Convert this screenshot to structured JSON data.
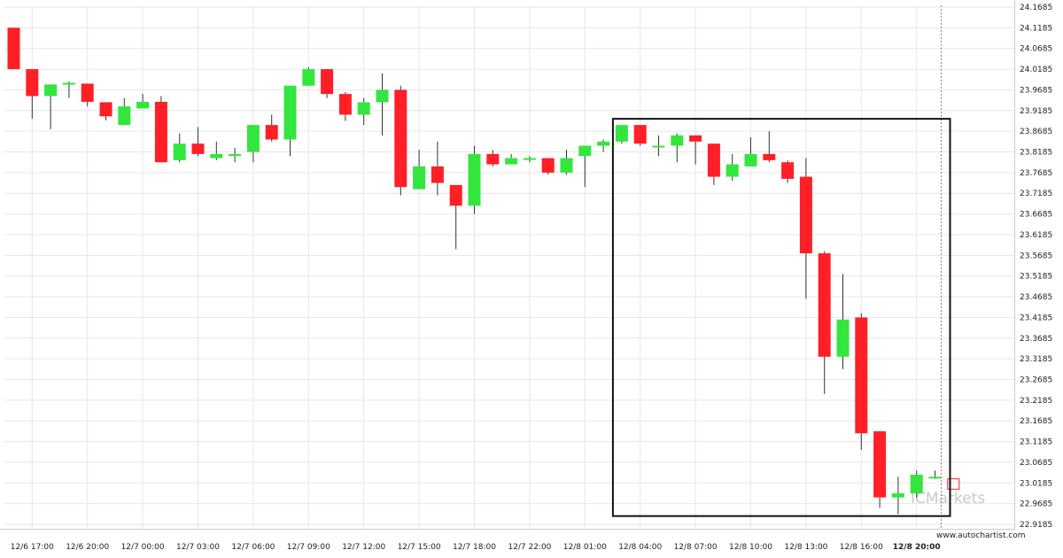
{
  "watermark": "ICMarkets",
  "source_url": "www.autochartist.com",
  "colors": {
    "bull": "#33e63d",
    "bear": "#ff1f26",
    "wick": "#333333",
    "grid": "#e6e6e6"
  },
  "chart_data": {
    "type": "candlestick",
    "x_tick_labels": [
      "12/6 17:00",
      "12/6 20:00",
      "12/7 00:00",
      "12/7 03:00",
      "12/7 06:00",
      "12/7 09:00",
      "12/7 12:00",
      "12/7 15:00",
      "12/7 18:00",
      "12/7 22:00",
      "12/8 01:00",
      "12/8 04:00",
      "12/8 07:00",
      "12/8 10:00",
      "12/8 13:00",
      "12/8 16:00",
      "12/8 20:00"
    ],
    "x_tick_candle_index": [
      1,
      4,
      7,
      10,
      13,
      16,
      19,
      22,
      25,
      28,
      31,
      34,
      37,
      40,
      43,
      46,
      49
    ],
    "y_tick_labels": [
      "24.1685",
      "24.1185",
      "24.0685",
      "24.0185",
      "23.9685",
      "23.9185",
      "23.8685",
      "23.8185",
      "23.7685",
      "23.7185",
      "23.6685",
      "23.6185",
      "23.5685",
      "23.5185",
      "23.4685",
      "23.4185",
      "23.3685",
      "23.3185",
      "23.2685",
      "23.2185",
      "23.1685",
      "23.1185",
      "23.0685",
      "23.0185",
      "22.9685",
      "22.9185"
    ],
    "ylim": [
      22.9185,
      24.1685
    ],
    "candles": [
      {
        "o": 24.1185,
        "h": 24.1185,
        "l": 24.0185,
        "c": 24.0185
      },
      {
        "o": 24.0185,
        "h": 24.0185,
        "l": 23.8985,
        "c": 23.9535
      },
      {
        "o": 23.9535,
        "h": 23.9815,
        "l": 23.8735,
        "c": 23.9815
      },
      {
        "o": 23.9815,
        "h": 23.9885,
        "l": 23.9485,
        "c": 23.9855
      },
      {
        "o": 23.9835,
        "h": 23.9835,
        "l": 23.9285,
        "c": 23.9395
      },
      {
        "o": 23.9385,
        "h": 23.9385,
        "l": 23.8945,
        "c": 23.9045
      },
      {
        "o": 23.8835,
        "h": 23.9485,
        "l": 23.8835,
        "c": 23.9285
      },
      {
        "o": 23.9235,
        "h": 23.9585,
        "l": 23.9235,
        "c": 23.9395
      },
      {
        "o": 23.9395,
        "h": 23.9535,
        "l": 23.7935,
        "c": 23.7935
      },
      {
        "o": 23.7985,
        "h": 23.8635,
        "l": 23.7935,
        "c": 23.8385
      },
      {
        "o": 23.8385,
        "h": 23.8785,
        "l": 23.8085,
        "c": 23.8135
      },
      {
        "o": 23.8035,
        "h": 23.8435,
        "l": 23.7985,
        "c": 23.8135
      },
      {
        "o": 23.8085,
        "h": 23.8285,
        "l": 23.7935,
        "c": 23.8135
      },
      {
        "o": 23.8185,
        "h": 23.8835,
        "l": 23.7935,
        "c": 23.8835
      },
      {
        "o": 23.8835,
        "h": 23.9085,
        "l": 23.8435,
        "c": 23.8485
      },
      {
        "o": 23.8485,
        "h": 23.9785,
        "l": 23.8085,
        "c": 23.9785
      },
      {
        "o": 23.9785,
        "h": 24.0235,
        "l": 23.9785,
        "c": 24.0185
      },
      {
        "o": 24.0185,
        "h": 24.0185,
        "l": 23.9485,
        "c": 23.9585
      },
      {
        "o": 23.9585,
        "h": 23.9635,
        "l": 23.8935,
        "c": 23.9085
      },
      {
        "o": 23.9085,
        "h": 23.9485,
        "l": 23.8835,
        "c": 23.9385
      },
      {
        "o": 23.9385,
        "h": 24.0085,
        "l": 23.8585,
        "c": 23.9685
      },
      {
        "o": 23.9685,
        "h": 23.9785,
        "l": 23.7135,
        "c": 23.7335
      },
      {
        "o": 23.7285,
        "h": 23.8235,
        "l": 23.7285,
        "c": 23.7835
      },
      {
        "o": 23.7835,
        "h": 23.8435,
        "l": 23.7135,
        "c": 23.7435
      },
      {
        "o": 23.7385,
        "h": 23.7385,
        "l": 23.5835,
        "c": 23.6885
      },
      {
        "o": 23.6885,
        "h": 23.8335,
        "l": 23.6685,
        "c": 23.8135
      },
      {
        "o": 23.8135,
        "h": 23.8235,
        "l": 23.7835,
        "c": 23.7885
      },
      {
        "o": 23.7885,
        "h": 23.8135,
        "l": 23.7885,
        "c": 23.8035
      },
      {
        "o": 23.8035,
        "h": 23.8085,
        "l": 23.7935,
        "c": 23.8035
      },
      {
        "o": 23.8035,
        "h": 23.8035,
        "l": 23.7635,
        "c": 23.7685
      },
      {
        "o": 23.7685,
        "h": 23.8235,
        "l": 23.7635,
        "c": 23.8035
      },
      {
        "o": 23.8085,
        "h": 23.8335,
        "l": 23.7335,
        "c": 23.8335
      },
      {
        "o": 23.8335,
        "h": 23.8485,
        "l": 23.8185,
        "c": 23.8435
      },
      {
        "o": 23.8435,
        "h": 23.8835,
        "l": 23.8385,
        "c": 23.8835
      },
      {
        "o": 23.8835,
        "h": 23.8835,
        "l": 23.8335,
        "c": 23.8385
      },
      {
        "o": 23.8335,
        "h": 23.8585,
        "l": 23.8085,
        "c": 23.8335
      },
      {
        "o": 23.8335,
        "h": 23.8635,
        "l": 23.7935,
        "c": 23.8585
      },
      {
        "o": 23.8585,
        "h": 23.8585,
        "l": 23.7885,
        "c": 23.8435
      },
      {
        "o": 23.8385,
        "h": 23.8385,
        "l": 23.7385,
        "c": 23.7585
      },
      {
        "o": 23.7585,
        "h": 23.8135,
        "l": 23.7485,
        "c": 23.7885
      },
      {
        "o": 23.7835,
        "h": 23.8535,
        "l": 23.7835,
        "c": 23.8135
      },
      {
        "o": 23.8135,
        "h": 23.8685,
        "l": 23.7935,
        "c": 23.7985
      },
      {
        "o": 23.7935,
        "h": 23.7985,
        "l": 23.7435,
        "c": 23.7535
      },
      {
        "o": 23.7585,
        "h": 23.8035,
        "l": 23.4635,
        "c": 23.5735
      },
      {
        "o": 23.5735,
        "h": 23.5785,
        "l": 23.2335,
        "c": 23.3235
      },
      {
        "o": 23.3235,
        "h": 23.5235,
        "l": 23.2935,
        "c": 23.4135
      },
      {
        "o": 23.4185,
        "h": 23.4285,
        "l": 23.0985,
        "c": 23.1385
      },
      {
        "o": 23.1435,
        "h": 23.1435,
        "l": 22.9585,
        "c": 22.9835
      },
      {
        "o": 22.9835,
        "h": 23.0335,
        "l": 22.9435,
        "c": 22.9935
      },
      {
        "o": 22.9935,
        "h": 23.0485,
        "l": 22.9835,
        "c": 23.0385
      },
      {
        "o": 23.0335,
        "h": 23.0485,
        "l": 23.0285,
        "c": 23.0335
      }
    ],
    "forecast_candle": {
      "o": 23.0285,
      "c": 23.0035
    },
    "pattern_box": {
      "candle_start": 33,
      "candle_end": 50,
      "price_top": 23.8985,
      "price_bottom": 22.9385
    },
    "current_marker_candle": 50
  }
}
